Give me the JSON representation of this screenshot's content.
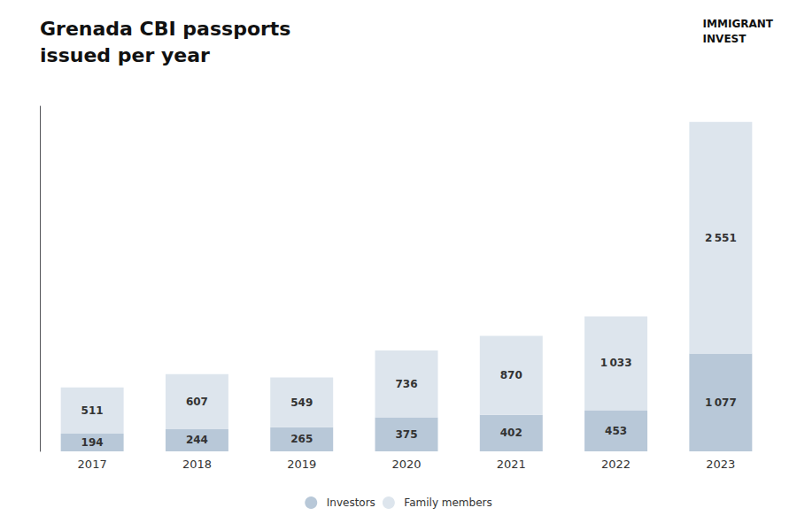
{
  "chart_data": {
    "type": "bar",
    "title": "Grenada CBI passports",
    "subtitle": "issued per year",
    "categories": [
      "2017",
      "2018",
      "2019",
      "2020",
      "2021",
      "2022",
      "2023"
    ],
    "series": [
      {
        "name": "Investors",
        "color": "#b8c8d8",
        "values": [
          194,
          244,
          265,
          375,
          402,
          453,
          1077
        ],
        "value_labels": [
          "194",
          "244",
          "265",
          "375",
          "402",
          "453",
          "1 077"
        ]
      },
      {
        "name": "Family members",
        "color": "#dde5ed",
        "values": [
          511,
          607,
          549,
          736,
          870,
          1033,
          2551
        ],
        "value_labels": [
          "511",
          "607",
          "549",
          "736",
          "870",
          "1 033",
          "2 551"
        ]
      }
    ],
    "stacked": true,
    "data_labels": true,
    "ylim": [
      0,
      3800
    ],
    "tick_labels": "x",
    "grid": false,
    "legend": "bottom",
    "annotations": [
      "IMMIGRANT\nINVEST"
    ]
  }
}
